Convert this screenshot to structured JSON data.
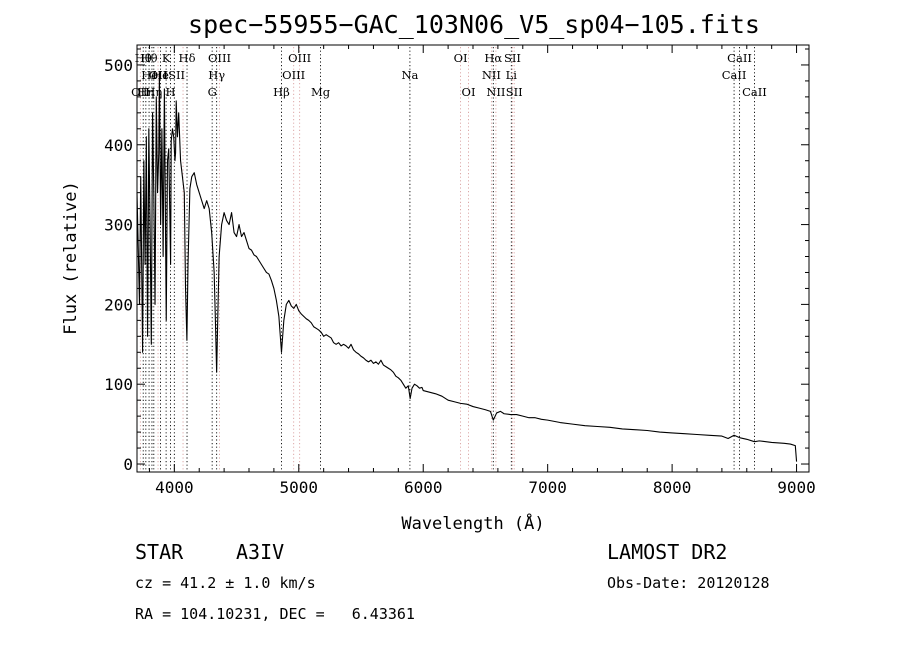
{
  "chart_data": {
    "type": "line",
    "title": "spec−55955−GAC_103N06_V5_sp04−105.fits",
    "xlabel": "Wavelength (Å)",
    "ylabel": "Flux (relative)",
    "xlim": [
      3700,
      9100
    ],
    "ylim": [
      -10,
      525
    ],
    "x_ticks": [
      4000,
      5000,
      6000,
      7000,
      8000,
      9000
    ],
    "y_ticks": [
      0,
      100,
      200,
      300,
      400,
      500
    ],
    "grid": false,
    "series": [
      {
        "points": [
          [
            3700,
            340
          ],
          [
            3720,
            200
          ],
          [
            3730,
            360
          ],
          [
            3745,
            140
          ],
          [
            3755,
            380
          ],
          [
            3765,
            250
          ],
          [
            3775,
            410
          ],
          [
            3785,
            160
          ],
          [
            3795,
            420
          ],
          [
            3805,
            300
          ],
          [
            3815,
            150
          ],
          [
            3825,
            440
          ],
          [
            3835,
            340
          ],
          [
            3845,
            200
          ],
          [
            3855,
            460
          ],
          [
            3865,
            340
          ],
          [
            3875,
            390
          ],
          [
            3880,
            490
          ],
          [
            3890,
            300
          ],
          [
            3900,
            420
          ],
          [
            3910,
            260
          ],
          [
            3920,
            470
          ],
          [
            3935,
            180
          ],
          [
            3945,
            380
          ],
          [
            3955,
            395
          ],
          [
            3965,
            300
          ],
          [
            3970,
            250
          ],
          [
            3975,
            405
          ],
          [
            3985,
            420
          ],
          [
            3995,
            410
          ],
          [
            4005,
            380
          ],
          [
            4010,
            390
          ],
          [
            4015,
            455
          ],
          [
            4025,
            410
          ],
          [
            4035,
            440
          ],
          [
            4050,
            380
          ],
          [
            4065,
            360
          ],
          [
            4080,
            340
          ],
          [
            4090,
            220
          ],
          [
            4101,
            155
          ],
          [
            4110,
            250
          ],
          [
            4125,
            345
          ],
          [
            4140,
            360
          ],
          [
            4160,
            365
          ],
          [
            4180,
            350
          ],
          [
            4200,
            340
          ],
          [
            4220,
            330
          ],
          [
            4240,
            320
          ],
          [
            4260,
            330
          ],
          [
            4280,
            320
          ],
          [
            4300,
            290
          ],
          [
            4320,
            240
          ],
          [
            4330,
            180
          ],
          [
            4340,
            115
          ],
          [
            4350,
            190
          ],
          [
            4360,
            260
          ],
          [
            4380,
            300
          ],
          [
            4400,
            315
          ],
          [
            4420,
            305
          ],
          [
            4440,
            300
          ],
          [
            4460,
            315
          ],
          [
            4480,
            290
          ],
          [
            4500,
            285
          ],
          [
            4520,
            300
          ],
          [
            4540,
            285
          ],
          [
            4560,
            290
          ],
          [
            4580,
            280
          ],
          [
            4600,
            270
          ],
          [
            4620,
            268
          ],
          [
            4640,
            262
          ],
          [
            4660,
            260
          ],
          [
            4680,
            255
          ],
          [
            4700,
            250
          ],
          [
            4720,
            245
          ],
          [
            4740,
            240
          ],
          [
            4760,
            238
          ],
          [
            4780,
            230
          ],
          [
            4800,
            220
          ],
          [
            4820,
            205
          ],
          [
            4840,
            185
          ],
          [
            4861,
            140
          ],
          [
            4880,
            180
          ],
          [
            4900,
            200
          ],
          [
            4920,
            205
          ],
          [
            4940,
            198
          ],
          [
            4960,
            195
          ],
          [
            4980,
            200
          ],
          [
            5000,
            192
          ],
          [
            5020,
            188
          ],
          [
            5040,
            185
          ],
          [
            5060,
            182
          ],
          [
            5080,
            180
          ],
          [
            5100,
            177
          ],
          [
            5120,
            172
          ],
          [
            5140,
            170
          ],
          [
            5160,
            168
          ],
          [
            5180,
            165
          ],
          [
            5200,
            160
          ],
          [
            5220,
            162
          ],
          [
            5240,
            160
          ],
          [
            5260,
            158
          ],
          [
            5280,
            152
          ],
          [
            5300,
            150
          ],
          [
            5320,
            152
          ],
          [
            5340,
            148
          ],
          [
            5360,
            150
          ],
          [
            5380,
            148
          ],
          [
            5400,
            145
          ],
          [
            5420,
            150
          ],
          [
            5440,
            143
          ],
          [
            5460,
            140
          ],
          [
            5480,
            138
          ],
          [
            5500,
            135
          ],
          [
            5520,
            133
          ],
          [
            5540,
            130
          ],
          [
            5560,
            128
          ],
          [
            5580,
            130
          ],
          [
            5600,
            126
          ],
          [
            5620,
            128
          ],
          [
            5640,
            125
          ],
          [
            5660,
            130
          ],
          [
            5680,
            124
          ],
          [
            5700,
            122
          ],
          [
            5720,
            120
          ],
          [
            5740,
            118
          ],
          [
            5760,
            115
          ],
          [
            5780,
            110
          ],
          [
            5800,
            108
          ],
          [
            5820,
            105
          ],
          [
            5840,
            100
          ],
          [
            5860,
            95
          ],
          [
            5880,
            98
          ],
          [
            5895,
            82
          ],
          [
            5910,
            95
          ],
          [
            5930,
            100
          ],
          [
            5950,
            98
          ],
          [
            5970,
            95
          ],
          [
            5990,
            96
          ],
          [
            6000,
            92
          ],
          [
            6050,
            90
          ],
          [
            6100,
            88
          ],
          [
            6150,
            85
          ],
          [
            6200,
            80
          ],
          [
            6250,
            78
          ],
          [
            6300,
            76
          ],
          [
            6350,
            75
          ],
          [
            6400,
            72
          ],
          [
            6450,
            70
          ],
          [
            6500,
            68
          ],
          [
            6540,
            66
          ],
          [
            6563,
            55
          ],
          [
            6590,
            64
          ],
          [
            6620,
            66
          ],
          [
            6650,
            63
          ],
          [
            6700,
            62
          ],
          [
            6750,
            62
          ],
          [
            6800,
            60
          ],
          [
            6850,
            58
          ],
          [
            6900,
            58
          ],
          [
            6950,
            56
          ],
          [
            7000,
            55
          ],
          [
            7100,
            52
          ],
          [
            7200,
            50
          ],
          [
            7300,
            48
          ],
          [
            7400,
            47
          ],
          [
            7500,
            46
          ],
          [
            7600,
            44
          ],
          [
            7700,
            43
          ],
          [
            7800,
            42
          ],
          [
            7900,
            40
          ],
          [
            8000,
            39
          ],
          [
            8100,
            38
          ],
          [
            8200,
            37
          ],
          [
            8300,
            36
          ],
          [
            8400,
            35
          ],
          [
            8450,
            32
          ],
          [
            8498,
            36
          ],
          [
            8542,
            33
          ],
          [
            8600,
            31
          ],
          [
            8662,
            28
          ],
          [
            8700,
            29
          ],
          [
            8800,
            27
          ],
          [
            8900,
            26
          ],
          [
            8950,
            25
          ],
          [
            8990,
            23
          ],
          [
            9000,
            3
          ]
        ]
      }
    ],
    "lines": [
      {
        "wl": 3727,
        "label": "OII",
        "row": 2,
        "color": "#d9a0a0"
      },
      {
        "wl": 3750,
        "label": "Hθ",
        "row": 0,
        "color": "#000000"
      },
      {
        "wl": 3771,
        "label": "Hη",
        "row": 2,
        "color": "#000000"
      },
      {
        "wl": 3797,
        "label": "Hθ",
        "row": 0,
        "color": "#000000"
      },
      {
        "wl": 3820,
        "label": "HeI",
        "row": 1,
        "color": "#000000"
      },
      {
        "wl": 3835,
        "label": "Hη",
        "row": 2,
        "color": "#000000"
      },
      {
        "wl": 3869,
        "label": "OII",
        "row": 1,
        "color": "#d9a0a0"
      },
      {
        "wl": 3889,
        "label": "He",
        "row": 1,
        "color": "#000000"
      },
      {
        "wl": 3934,
        "label": "K",
        "row": 0,
        "color": "#000000"
      },
      {
        "wl": 3969,
        "label": "H",
        "row": 2,
        "color": "#000000"
      },
      {
        "wl": 4000,
        "label": "ISII",
        "row": 1,
        "color": "#000000"
      },
      {
        "wl": 4070,
        "label": "",
        "row": 1,
        "color": "#d9a0a0"
      },
      {
        "wl": 4102,
        "label": "Hδ",
        "row": 0,
        "color": "#000000"
      },
      {
        "wl": 4304,
        "label": "G",
        "row": 2,
        "color": "#000000"
      },
      {
        "wl": 4340,
        "label": "Hγ",
        "row": 1,
        "color": "#000000"
      },
      {
        "wl": 4363,
        "label": "OIII",
        "row": 0,
        "color": "#d9a0a0"
      },
      {
        "wl": 4861,
        "label": "Hβ",
        "row": 2,
        "color": "#000000"
      },
      {
        "wl": 4959,
        "label": "OIII",
        "row": 1,
        "color": "#d9a0a0"
      },
      {
        "wl": 5007,
        "label": "OIII",
        "row": 0,
        "color": "#d9a0a0"
      },
      {
        "wl": 5175,
        "label": "Mg",
        "row": 2,
        "color": "#000000"
      },
      {
        "wl": 5893,
        "label": "Na",
        "row": 1,
        "color": "#000000"
      },
      {
        "wl": 6300,
        "label": "OI",
        "row": 0,
        "color": "#d9a0a0"
      },
      {
        "wl": 6364,
        "label": "OI",
        "row": 2,
        "color": "#d9a0a0"
      },
      {
        "wl": 6548,
        "label": "NII",
        "row": 1,
        "color": "#d9a0a0"
      },
      {
        "wl": 6563,
        "label": "Hα",
        "row": 0,
        "color": "#000000"
      },
      {
        "wl": 6584,
        "label": "NII",
        "row": 2,
        "color": "#d9a0a0"
      },
      {
        "wl": 6708,
        "label": "Li",
        "row": 1,
        "color": "#000000"
      },
      {
        "wl": 6717,
        "label": "SII",
        "row": 0,
        "color": "#d9a0a0"
      },
      {
        "wl": 6731,
        "label": "SII",
        "row": 2,
        "color": "#d9a0a0"
      },
      {
        "wl": 8498,
        "label": "CaII",
        "row": 1,
        "color": "#000000"
      },
      {
        "wl": 8542,
        "label": "CaII",
        "row": 0,
        "color": "#000000"
      },
      {
        "wl": 8662,
        "label": "CaII",
        "row": 2,
        "color": "#000000"
      }
    ]
  },
  "info": {
    "object_type": "STAR",
    "subclass": "A3IV",
    "survey": "LAMOST DR2",
    "redshift": "cz = 41.2 ± 1.0 km/s",
    "obs_date": "Obs-Date: 20120128",
    "coords": "RA = 104.10231, DEC =   6.43361"
  }
}
